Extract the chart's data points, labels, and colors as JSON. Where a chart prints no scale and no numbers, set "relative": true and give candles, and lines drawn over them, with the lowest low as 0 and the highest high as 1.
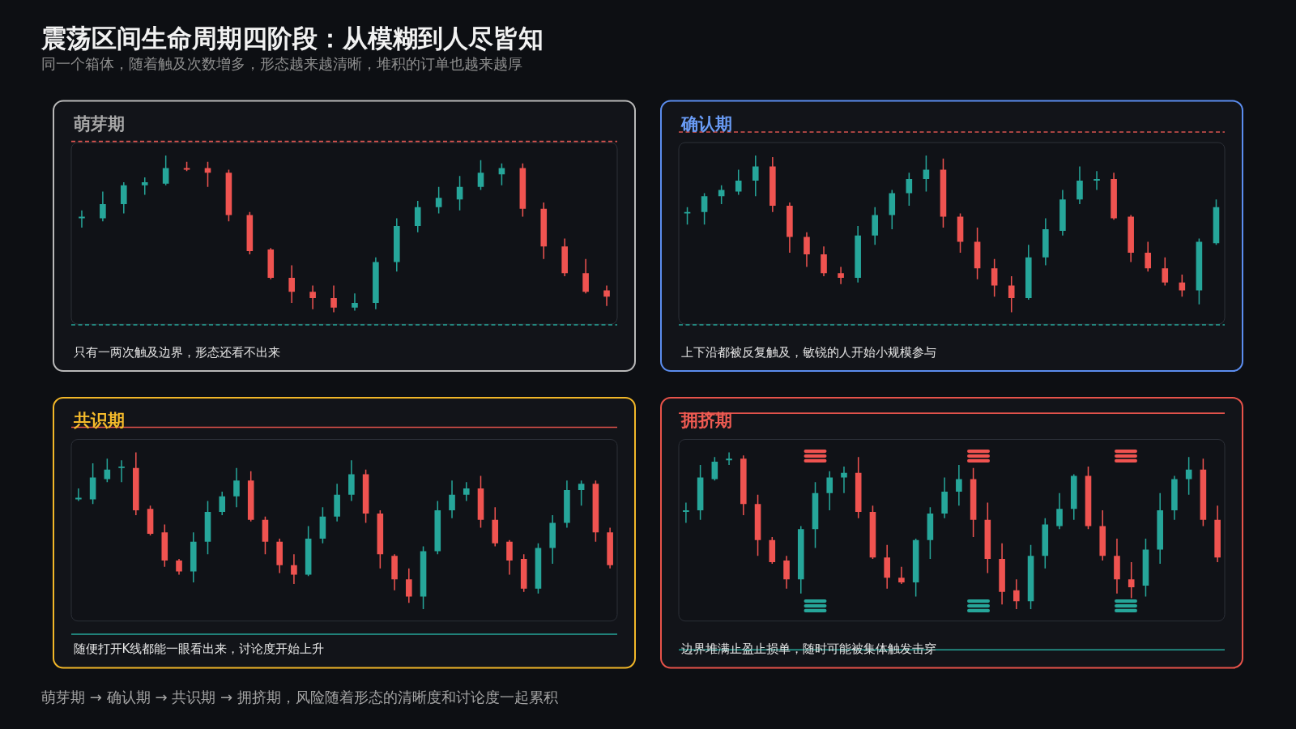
{
  "chart_data": [
    {
      "type": "other",
      "title": "震荡区间生命周期四阶段：从模糊到人尽皆知",
      "subtitle": "同一个箱体，随着触及次数增多，形态越来越清晰，堆积的订单也越来越厚",
      "annotations": [
        "萌芽期 → 确认期 → 共识期 → 拥挤期，风险随着形态的清晰度和讨论度一起累积"
      ]
    },
    {
      "type": "candlestick",
      "title": "萌芽期",
      "relative": true,
      "categories": [
        null,
        null,
        null,
        null,
        null,
        null,
        null,
        null,
        null,
        null,
        null,
        null,
        null,
        null,
        null,
        null,
        null,
        null,
        null,
        null,
        null,
        null,
        null,
        null,
        null,
        null
      ],
      "ohlc": [
        [
          0.6,
          0.65,
          0.54,
          0.61
        ],
        [
          0.6,
          0.77,
          0.58,
          0.69
        ],
        [
          0.69,
          0.83,
          0.63,
          0.81
        ],
        [
          0.81,
          0.86,
          0.75,
          0.83
        ],
        [
          0.82,
          1,
          0.81,
          0.92
        ],
        [
          0.92,
          0.96,
          0.9,
          0.91
        ],
        [
          0.92,
          0.96,
          0.8,
          0.89
        ],
        [
          0.89,
          0.91,
          0.58,
          0.62
        ],
        [
          0.62,
          0.64,
          0.37,
          0.39
        ],
        [
          0.4,
          0.41,
          0.21,
          0.22
        ],
        [
          0.22,
          0.3,
          0.06,
          0.13
        ],
        [
          0.13,
          0.17,
          0.02,
          0.09
        ],
        [
          0.09,
          0.17,
          0,
          0.03
        ],
        [
          0.03,
          0.12,
          0.01,
          0.06
        ],
        [
          0.06,
          0.35,
          0.02,
          0.32
        ],
        [
          0.32,
          0.6,
          0.26,
          0.55
        ],
        [
          0.55,
          0.71,
          0.51,
          0.67
        ],
        [
          0.67,
          0.8,
          0.63,
          0.73
        ],
        [
          0.72,
          0.87,
          0.65,
          0.8
        ],
        [
          0.8,
          0.97,
          0.78,
          0.89
        ],
        [
          0.88,
          0.95,
          0.81,
          0.92
        ],
        [
          0.92,
          0.95,
          0.61,
          0.66
        ],
        [
          0.66,
          0.7,
          0.34,
          0.42
        ],
        [
          0.42,
          0.47,
          0.23,
          0.25
        ],
        [
          0.25,
          0.34,
          0.12,
          0.13
        ],
        [
          0.14,
          0.17,
          0.04,
          0.1
        ]
      ],
      "ref_lines": [
        {
          "axis": "y",
          "value": 1.09,
          "color": "#d9534f",
          "line_style": "dashed"
        },
        {
          "axis": "y",
          "value": -0.08,
          "color": "#26a69a",
          "line_style": "dashed"
        }
      ],
      "annotations": [
        "只有一两次触及边界，形态还看不出来"
      ]
    },
    {
      "type": "candlestick",
      "title": "确认期",
      "relative": true,
      "categories": [
        null,
        null,
        null,
        null,
        null,
        null,
        null,
        null,
        null,
        null,
        null,
        null,
        null,
        null,
        null,
        null,
        null,
        null,
        null,
        null,
        null,
        null,
        null,
        null,
        null,
        null,
        null,
        null,
        null,
        null,
        null,
        null
      ],
      "ohlc": [
        [
          0.63,
          0.67,
          0.56,
          0.64
        ],
        [
          0.64,
          0.76,
          0.56,
          0.74
        ],
        [
          0.74,
          0.81,
          0.69,
          0.78
        ],
        [
          0.77,
          0.91,
          0.75,
          0.84
        ],
        [
          0.84,
          1,
          0.74,
          0.93
        ],
        [
          0.93,
          0.99,
          0.64,
          0.68
        ],
        [
          0.68,
          0.7,
          0.38,
          0.48
        ],
        [
          0.48,
          0.51,
          0.29,
          0.37
        ],
        [
          0.37,
          0.42,
          0.23,
          0.25
        ],
        [
          0.25,
          0.29,
          0.18,
          0.22
        ],
        [
          0.22,
          0.55,
          0.19,
          0.49
        ],
        [
          0.49,
          0.67,
          0.43,
          0.62
        ],
        [
          0.62,
          0.78,
          0.53,
          0.76
        ],
        [
          0.76,
          0.89,
          0.68,
          0.85
        ],
        [
          0.85,
          1,
          0.77,
          0.91
        ],
        [
          0.91,
          0.98,
          0.54,
          0.61
        ],
        [
          0.61,
          0.63,
          0.38,
          0.45
        ],
        [
          0.45,
          0.54,
          0.21,
          0.28
        ],
        [
          0.28,
          0.34,
          0.1,
          0.17
        ],
        [
          0.17,
          0.23,
          0,
          0.09
        ],
        [
          0.09,
          0.43,
          0.08,
          0.35
        ],
        [
          0.35,
          0.6,
          0.3,
          0.53
        ],
        [
          0.52,
          0.78,
          0.49,
          0.72
        ],
        [
          0.72,
          0.93,
          0.69,
          0.84
        ],
        [
          0.84,
          0.9,
          0.78,
          0.85
        ],
        [
          0.85,
          0.89,
          0.59,
          0.6
        ],
        [
          0.61,
          0.62,
          0.32,
          0.38
        ],
        [
          0.38,
          0.45,
          0.26,
          0.28
        ],
        [
          0.28,
          0.35,
          0.17,
          0.19
        ],
        [
          0.19,
          0.24,
          0.1,
          0.14
        ],
        [
          0.14,
          0.47,
          0.05,
          0.45
        ],
        [
          0.44,
          0.72,
          0.43,
          0.67
        ]
      ],
      "ref_lines": [
        {
          "axis": "y",
          "value": 1.15,
          "color": "#d9534f",
          "line_style": "dashed"
        },
        {
          "axis": "y",
          "value": -0.08,
          "color": "#26a69a",
          "line_style": "dashed"
        }
      ],
      "annotations": [
        "上下沿都被反复触及，敏锐的人开始小规模参与"
      ]
    },
    {
      "type": "candlestick",
      "title": "共识期",
      "relative": true,
      "categories": [
        null,
        null,
        null,
        null,
        null,
        null,
        null,
        null,
        null,
        null,
        null,
        null,
        null,
        null,
        null,
        null,
        null,
        null,
        null,
        null,
        null,
        null,
        null,
        null,
        null,
        null,
        null,
        null,
        null,
        null,
        null,
        null,
        null,
        null,
        null,
        null,
        null,
        null
      ],
      "ohlc": [
        [
          0.7,
          0.77,
          0.69,
          0.71
        ],
        [
          0.7,
          0.93,
          0.67,
          0.84
        ],
        [
          0.83,
          0.96,
          0.81,
          0.89
        ],
        [
          0.9,
          0.95,
          0.81,
          0.91
        ],
        [
          0.9,
          1,
          0.6,
          0.63
        ],
        [
          0.64,
          0.66,
          0.47,
          0.48
        ],
        [
          0.49,
          0.54,
          0.27,
          0.31
        ],
        [
          0.31,
          0.32,
          0.22,
          0.24
        ],
        [
          0.24,
          0.49,
          0.17,
          0.43
        ],
        [
          0.43,
          0.69,
          0.35,
          0.62
        ],
        [
          0.62,
          0.75,
          0.6,
          0.72
        ],
        [
          0.72,
          0.9,
          0.65,
          0.82
        ],
        [
          0.82,
          0.88,
          0.56,
          0.57
        ],
        [
          0.57,
          0.59,
          0.35,
          0.43
        ],
        [
          0.43,
          0.45,
          0.23,
          0.28
        ],
        [
          0.28,
          0.35,
          0.16,
          0.22
        ],
        [
          0.22,
          0.53,
          0.21,
          0.45
        ],
        [
          0.45,
          0.65,
          0.42,
          0.59
        ],
        [
          0.59,
          0.8,
          0.56,
          0.73
        ],
        [
          0.73,
          0.95,
          0.69,
          0.86
        ],
        [
          0.86,
          0.89,
          0.55,
          0.61
        ],
        [
          0.61,
          0.63,
          0.26,
          0.35
        ],
        [
          0.34,
          0.35,
          0.12,
          0.19
        ],
        [
          0.19,
          0.26,
          0.04,
          0.08
        ],
        [
          0.08,
          0.4,
          0,
          0.37
        ],
        [
          0.37,
          0.69,
          0.35,
          0.63
        ],
        [
          0.63,
          0.82,
          0.58,
          0.73
        ],
        [
          0.73,
          0.81,
          0.69,
          0.77
        ],
        [
          0.77,
          0.85,
          0.52,
          0.57
        ],
        [
          0.57,
          0.65,
          0.4,
          0.42
        ],
        [
          0.43,
          0.44,
          0.22,
          0.31
        ],
        [
          0.32,
          0.35,
          0.11,
          0.13
        ],
        [
          0.13,
          0.42,
          0.1,
          0.39
        ],
        [
          0.39,
          0.6,
          0.29,
          0.55
        ],
        [
          0.55,
          0.82,
          0.52,
          0.76
        ],
        [
          0.76,
          0.82,
          0.66,
          0.8
        ],
        [
          0.8,
          0.82,
          0.43,
          0.49
        ],
        [
          0.49,
          0.52,
          0.26,
          0.28
        ]
      ],
      "ref_lines": [
        {
          "axis": "y",
          "value": 1.16,
          "color": "#e0524b",
          "line_style": "solid"
        },
        {
          "axis": "y",
          "value": -0.16,
          "color": "#26a69a",
          "line_style": "solid"
        }
      ],
      "annotations": [
        "随便打开K线都能一眼看出来，讨论度开始上升"
      ]
    },
    {
      "type": "candlestick",
      "title": "拥挤期",
      "relative": true,
      "categories": [
        null,
        null,
        null,
        null,
        null,
        null,
        null,
        null,
        null,
        null,
        null,
        null,
        null,
        null,
        null,
        null,
        null,
        null,
        null,
        null,
        null,
        null,
        null,
        null,
        null,
        null,
        null,
        null,
        null,
        null,
        null,
        null,
        null,
        null,
        null,
        null,
        null,
        null
      ],
      "ohlc": [
        [
          0.62,
          0.68,
          0.55,
          0.63
        ],
        [
          0.63,
          0.92,
          0.57,
          0.84
        ],
        [
          0.83,
          0.97,
          0.82,
          0.94
        ],
        [
          0.95,
          1,
          0.92,
          0.96
        ],
        [
          0.96,
          0.98,
          0.6,
          0.67
        ],
        [
          0.67,
          0.73,
          0.34,
          0.44
        ],
        [
          0.44,
          0.46,
          0.29,
          0.3
        ],
        [
          0.31,
          0.34,
          0.13,
          0.19
        ],
        [
          0.19,
          0.53,
          0.1,
          0.51
        ],
        [
          0.51,
          0.81,
          0.39,
          0.74
        ],
        [
          0.74,
          0.88,
          0.63,
          0.84
        ],
        [
          0.84,
          0.91,
          0.74,
          0.87
        ],
        [
          0.87,
          0.97,
          0.58,
          0.62
        ],
        [
          0.62,
          0.66,
          0.32,
          0.33
        ],
        [
          0.33,
          0.41,
          0.13,
          0.2
        ],
        [
          0.2,
          0.27,
          0.16,
          0.17
        ],
        [
          0.17,
          0.45,
          0.08,
          0.44
        ],
        [
          0.44,
          0.65,
          0.32,
          0.61
        ],
        [
          0.61,
          0.84,
          0.58,
          0.75
        ],
        [
          0.75,
          0.92,
          0.66,
          0.83
        ],
        [
          0.83,
          0.9,
          0.46,
          0.57
        ],
        [
          0.57,
          0.68,
          0.23,
          0.32
        ],
        [
          0.32,
          0.42,
          0.03,
          0.11
        ],
        [
          0.12,
          0.19,
          0,
          0.05
        ],
        [
          0.05,
          0.41,
          0,
          0.34
        ],
        [
          0.34,
          0.58,
          0.26,
          0.54
        ],
        [
          0.53,
          0.74,
          0.51,
          0.64
        ],
        [
          0.64,
          0.86,
          0.57,
          0.85
        ],
        [
          0.85,
          0.91,
          0.51,
          0.53
        ],
        [
          0.53,
          0.63,
          0.31,
          0.34
        ],
        [
          0.34,
          0.45,
          0.1,
          0.19
        ],
        [
          0.19,
          0.3,
          0.07,
          0.14
        ],
        [
          0.15,
          0.45,
          0.08,
          0.38
        ],
        [
          0.38,
          0.74,
          0.29,
          0.63
        ],
        [
          0.63,
          0.85,
          0.57,
          0.83
        ],
        [
          0.83,
          0.97,
          0.73,
          0.89
        ],
        [
          0.89,
          0.96,
          0.53,
          0.57
        ],
        [
          0.57,
          0.66,
          0.3,
          0.33
        ]
      ],
      "ref_lines": [
        {
          "axis": "y",
          "value": 1.25,
          "color": "#e0524b",
          "line_style": "solid"
        },
        {
          "axis": "y",
          "value": -0.26,
          "color": "#26a69a",
          "line_style": "solid"
        }
      ],
      "annotations": [
        "边界堆满止盈止损单，随时可能被集体触发击穿"
      ]
    }
  ]
}
